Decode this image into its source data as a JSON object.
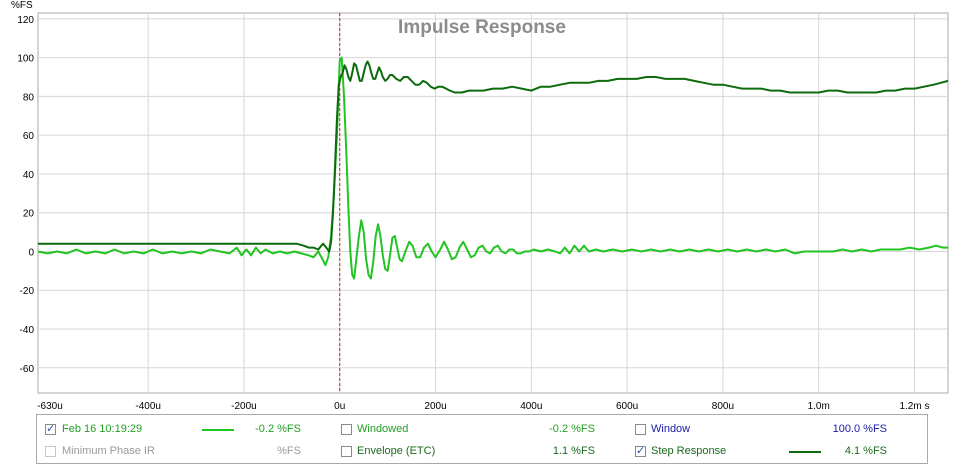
{
  "chart_data": {
    "type": "line",
    "title": "Impulse Response",
    "y_unit_label": "%FS",
    "xlim_us": [
      -630,
      1270
    ],
    "ylim": [
      -73,
      123
    ],
    "x_ticks": [
      {
        "value": -630,
        "label": "-630u"
      },
      {
        "value": -400,
        "label": "-400u"
      },
      {
        "value": -200,
        "label": "-200u"
      },
      {
        "value": 0,
        "label": "0u"
      },
      {
        "value": 200,
        "label": "200u"
      },
      {
        "value": 400,
        "label": "400u"
      },
      {
        "value": 600,
        "label": "600u"
      },
      {
        "value": 800,
        "label": "800u"
      },
      {
        "value": 1000,
        "label": "1.0m"
      },
      {
        "value": 1200,
        "label": "1.2m s"
      }
    ],
    "y_ticks": [
      {
        "value": 120,
        "label": "120"
      },
      {
        "value": 100,
        "label": "100"
      },
      {
        "value": 80,
        "label": "80"
      },
      {
        "value": 60,
        "label": "60"
      },
      {
        "value": 40,
        "label": "40"
      },
      {
        "value": 20,
        "label": "20"
      },
      {
        "value": 0,
        "label": "0"
      },
      {
        "value": -20,
        "label": "-20"
      },
      {
        "value": -40,
        "label": "-40"
      },
      {
        "value": -60,
        "label": "-60"
      }
    ],
    "grid": true,
    "marker_line_x": 0,
    "series": [
      {
        "name": "Feb 16 10:19:29",
        "color": "#22c422",
        "points": [
          [
            -630,
            0
          ],
          [
            -610,
            -1
          ],
          [
            -590,
            0
          ],
          [
            -570,
            -1
          ],
          [
            -550,
            1
          ],
          [
            -530,
            -1
          ],
          [
            -510,
            0
          ],
          [
            -490,
            -1
          ],
          [
            -470,
            1
          ],
          [
            -450,
            -1
          ],
          [
            -430,
            0
          ],
          [
            -410,
            -1
          ],
          [
            -390,
            1
          ],
          [
            -370,
            -1
          ],
          [
            -350,
            0
          ],
          [
            -330,
            -1
          ],
          [
            -310,
            0
          ],
          [
            -290,
            -1
          ],
          [
            -270,
            1
          ],
          [
            -250,
            0
          ],
          [
            -230,
            -1
          ],
          [
            -215,
            2
          ],
          [
            -205,
            -2
          ],
          [
            -195,
            1
          ],
          [
            -185,
            -2
          ],
          [
            -175,
            2
          ],
          [
            -165,
            -1
          ],
          [
            -155,
            1
          ],
          [
            -140,
            -1
          ],
          [
            -125,
            0
          ],
          [
            -110,
            -1
          ],
          [
            -95,
            0
          ],
          [
            -80,
            -1
          ],
          [
            -65,
            -2
          ],
          [
            -55,
            -3
          ],
          [
            -45,
            0
          ],
          [
            -38,
            -3
          ],
          [
            -30,
            -7
          ],
          [
            -24,
            -3
          ],
          [
            -18,
            8
          ],
          [
            -12,
            30
          ],
          [
            -6,
            60
          ],
          [
            0,
            98
          ],
          [
            4,
            100
          ],
          [
            9,
            80
          ],
          [
            14,
            50
          ],
          [
            18,
            22
          ],
          [
            22,
            0
          ],
          [
            26,
            -12
          ],
          [
            30,
            -14
          ],
          [
            35,
            -3
          ],
          [
            40,
            8
          ],
          [
            45,
            16
          ],
          [
            50,
            10
          ],
          [
            55,
            -4
          ],
          [
            60,
            -12
          ],
          [
            65,
            -14
          ],
          [
            70,
            -5
          ],
          [
            75,
            8
          ],
          [
            80,
            14
          ],
          [
            85,
            8
          ],
          [
            90,
            -2
          ],
          [
            95,
            -9
          ],
          [
            100,
            -10
          ],
          [
            105,
            -2
          ],
          [
            110,
            7
          ],
          [
            115,
            8
          ],
          [
            120,
            2
          ],
          [
            125,
            -4
          ],
          [
            130,
            -5
          ],
          [
            137,
            0
          ],
          [
            145,
            5
          ],
          [
            152,
            3
          ],
          [
            160,
            -3
          ],
          [
            168,
            -3
          ],
          [
            176,
            2
          ],
          [
            184,
            4
          ],
          [
            192,
            0
          ],
          [
            200,
            -3
          ],
          [
            210,
            1
          ],
          [
            218,
            5
          ],
          [
            226,
            1
          ],
          [
            234,
            -4
          ],
          [
            242,
            -3
          ],
          [
            250,
            2
          ],
          [
            258,
            5
          ],
          [
            266,
            1
          ],
          [
            274,
            -3
          ],
          [
            282,
            -2
          ],
          [
            290,
            2
          ],
          [
            298,
            3
          ],
          [
            306,
            0
          ],
          [
            314,
            -1
          ],
          [
            322,
            2
          ],
          [
            330,
            3
          ],
          [
            338,
            0
          ],
          [
            346,
            -1
          ],
          [
            354,
            1
          ],
          [
            362,
            1
          ],
          [
            370,
            -1
          ],
          [
            378,
            -1
          ],
          [
            386,
            0
          ],
          [
            395,
            0
          ],
          [
            405,
            1
          ],
          [
            420,
            0
          ],
          [
            435,
            1
          ],
          [
            450,
            0
          ],
          [
            460,
            -1
          ],
          [
            470,
            2
          ],
          [
            480,
            -1
          ],
          [
            490,
            3
          ],
          [
            500,
            0
          ],
          [
            510,
            3
          ],
          [
            520,
            0
          ],
          [
            535,
            1
          ],
          [
            550,
            0
          ],
          [
            570,
            1
          ],
          [
            590,
            0
          ],
          [
            610,
            1
          ],
          [
            630,
            0
          ],
          [
            650,
            1
          ],
          [
            670,
            0
          ],
          [
            690,
            1
          ],
          [
            710,
            0
          ],
          [
            730,
            1
          ],
          [
            750,
            0
          ],
          [
            770,
            1
          ],
          [
            790,
            0
          ],
          [
            810,
            1
          ],
          [
            830,
            0
          ],
          [
            850,
            1
          ],
          [
            870,
            0
          ],
          [
            890,
            1
          ],
          [
            910,
            0
          ],
          [
            930,
            1
          ],
          [
            950,
            -1
          ],
          [
            970,
            0
          ],
          [
            990,
            0
          ],
          [
            1010,
            0
          ],
          [
            1030,
            0
          ],
          [
            1050,
            1
          ],
          [
            1070,
            0
          ],
          [
            1090,
            1
          ],
          [
            1110,
            0
          ],
          [
            1130,
            1
          ],
          [
            1150,
            1
          ],
          [
            1170,
            1
          ],
          [
            1190,
            2
          ],
          [
            1210,
            1
          ],
          [
            1230,
            2
          ],
          [
            1245,
            3
          ],
          [
            1260,
            2
          ],
          [
            1270,
            2
          ]
        ]
      },
      {
        "name": "Step Response",
        "color": "#0c6b0c",
        "points": [
          [
            -630,
            4
          ],
          [
            -600,
            4
          ],
          [
            -570,
            4
          ],
          [
            -540,
            4
          ],
          [
            -510,
            4
          ],
          [
            -480,
            4
          ],
          [
            -450,
            4
          ],
          [
            -420,
            4
          ],
          [
            -390,
            4
          ],
          [
            -360,
            4
          ],
          [
            -330,
            4
          ],
          [
            -300,
            4
          ],
          [
            -270,
            4
          ],
          [
            -240,
            4
          ],
          [
            -210,
            4
          ],
          [
            -180,
            4
          ],
          [
            -150,
            4
          ],
          [
            -120,
            4
          ],
          [
            -90,
            4
          ],
          [
            -75,
            3
          ],
          [
            -65,
            2
          ],
          [
            -55,
            2
          ],
          [
            -45,
            1
          ],
          [
            -35,
            4
          ],
          [
            -28,
            2
          ],
          [
            -22,
            0
          ],
          [
            -18,
            5
          ],
          [
            -14,
            20
          ],
          [
            -10,
            42
          ],
          [
            -6,
            68
          ],
          [
            -2,
            86
          ],
          [
            2,
            90
          ],
          [
            6,
            92
          ],
          [
            10,
            96
          ],
          [
            14,
            94
          ],
          [
            18,
            90
          ],
          [
            22,
            88
          ],
          [
            26,
            92
          ],
          [
            30,
            97
          ],
          [
            34,
            96
          ],
          [
            38,
            92
          ],
          [
            42,
            88
          ],
          [
            46,
            88
          ],
          [
            50,
            92
          ],
          [
            54,
            96
          ],
          [
            58,
            98
          ],
          [
            62,
            96
          ],
          [
            66,
            92
          ],
          [
            70,
            89
          ],
          [
            74,
            89
          ],
          [
            78,
            92
          ],
          [
            82,
            95
          ],
          [
            86,
            93
          ],
          [
            90,
            90
          ],
          [
            95,
            88
          ],
          [
            100,
            89
          ],
          [
            105,
            91
          ],
          [
            110,
            91
          ],
          [
            118,
            89
          ],
          [
            126,
            88
          ],
          [
            134,
            90
          ],
          [
            142,
            90
          ],
          [
            150,
            88
          ],
          [
            158,
            86
          ],
          [
            166,
            86
          ],
          [
            174,
            88
          ],
          [
            182,
            87
          ],
          [
            190,
            85
          ],
          [
            198,
            84
          ],
          [
            206,
            85
          ],
          [
            214,
            85
          ],
          [
            222,
            84
          ],
          [
            230,
            83
          ],
          [
            240,
            82
          ],
          [
            255,
            82
          ],
          [
            270,
            83
          ],
          [
            285,
            83
          ],
          [
            300,
            83
          ],
          [
            320,
            84
          ],
          [
            340,
            84
          ],
          [
            360,
            85
          ],
          [
            380,
            84
          ],
          [
            400,
            83
          ],
          [
            420,
            85
          ],
          [
            440,
            85
          ],
          [
            460,
            86
          ],
          [
            480,
            87
          ],
          [
            500,
            87
          ],
          [
            520,
            87
          ],
          [
            540,
            88
          ],
          [
            560,
            88
          ],
          [
            580,
            89
          ],
          [
            600,
            89
          ],
          [
            620,
            89
          ],
          [
            640,
            90
          ],
          [
            660,
            90
          ],
          [
            680,
            89
          ],
          [
            700,
            89
          ],
          [
            720,
            89
          ],
          [
            740,
            88
          ],
          [
            760,
            87
          ],
          [
            780,
            86
          ],
          [
            800,
            86
          ],
          [
            820,
            85
          ],
          [
            840,
            84
          ],
          [
            860,
            84
          ],
          [
            880,
            84
          ],
          [
            900,
            83
          ],
          [
            920,
            83
          ],
          [
            940,
            82
          ],
          [
            960,
            82
          ],
          [
            980,
            82
          ],
          [
            1000,
            82
          ],
          [
            1020,
            83
          ],
          [
            1040,
            83
          ],
          [
            1060,
            82
          ],
          [
            1080,
            82
          ],
          [
            1100,
            82
          ],
          [
            1120,
            82
          ],
          [
            1140,
            83
          ],
          [
            1160,
            83
          ],
          [
            1180,
            84
          ],
          [
            1200,
            84
          ],
          [
            1220,
            85
          ],
          [
            1240,
            86
          ],
          [
            1255,
            87
          ],
          [
            1270,
            88
          ]
        ]
      }
    ]
  },
  "legend": {
    "row1": [
      {
        "label": "Feb 16 10:19:29",
        "checked": true,
        "value": "-0.2 %FS",
        "label_color": "#22a022",
        "value_color": "#22a022",
        "swatch_color": "#22c422"
      },
      {
        "label": "Windowed",
        "checked": false,
        "value": "-0.2 %FS",
        "label_color": "#22a022",
        "value_color": "#22a022"
      },
      {
        "label": "Window",
        "checked": false,
        "value": "100.0 %FS",
        "label_color": "#1a1aa8",
        "value_color": "#1a1aa8"
      }
    ],
    "row2": [
      {
        "label": "Minimum Phase IR",
        "checked": false,
        "disabled": true,
        "value": "%FS",
        "label_color": "#9a9a9a",
        "value_color": "#9a9a9a"
      },
      {
        "label": "Envelope (ETC)",
        "checked": false,
        "value": "1.1 %FS",
        "label_color": "#1a6a1a",
        "value_color": "#1a6a1a"
      },
      {
        "label": "Step Response",
        "checked": true,
        "value": "4.1 %FS",
        "label_color": "#1a6a1a",
        "value_color": "#1a6a1a",
        "swatch_color": "#0c6b0c"
      }
    ]
  }
}
